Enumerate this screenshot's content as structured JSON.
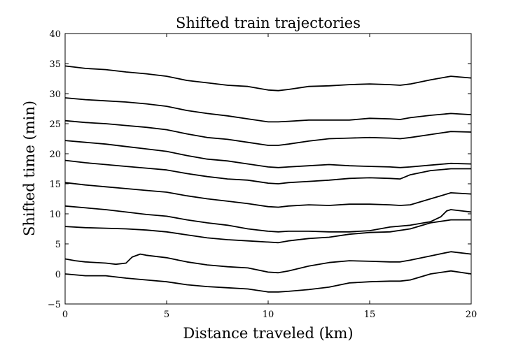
{
  "chart_data": {
    "type": "line",
    "title": "Shifted train trajectories",
    "xlabel": "Distance traveled (km)",
    "ylabel": "Shifted time (min)",
    "xlim": [
      0,
      20
    ],
    "ylim": [
      -5,
      40
    ],
    "xticks": [
      0,
      5,
      10,
      15,
      20
    ],
    "yticks": [
      -5,
      0,
      5,
      10,
      15,
      20,
      25,
      30,
      35,
      40
    ],
    "grid": false,
    "line_color": "#000000",
    "series": [
      {
        "x": [
          0,
          1,
          2,
          3,
          4,
          5,
          6,
          7,
          8,
          9,
          10,
          10.5,
          11,
          12,
          13,
          14,
          15,
          16,
          16.5,
          17,
          18,
          19,
          20
        ],
        "y": [
          0,
          -0.3,
          -0.3,
          -0.7,
          -1.0,
          -1.3,
          -1.8,
          -2.1,
          -2.3,
          -2.5,
          -3.0,
          -3.0,
          -2.9,
          -2.6,
          -2.2,
          -1.5,
          -1.3,
          -1.2,
          -1.2,
          -1.0,
          0.0,
          0.5,
          0.0
        ]
      },
      {
        "x": [
          0,
          0.5,
          1,
          2,
          2.5,
          3,
          3.3,
          3.7,
          4,
          5,
          6,
          7,
          8,
          9,
          10,
          10.5,
          11,
          12,
          13,
          14,
          15,
          16,
          16.5,
          17,
          18,
          19,
          20
        ],
        "y": [
          2.5,
          2.2,
          2.0,
          1.8,
          1.6,
          1.8,
          2.8,
          3.3,
          3.1,
          2.7,
          2.0,
          1.5,
          1.2,
          1.0,
          0.3,
          0.2,
          0.5,
          1.3,
          1.9,
          2.2,
          2.1,
          2.0,
          2.0,
          2.3,
          3.0,
          3.7,
          3.3
        ]
      },
      {
        "x": [
          0,
          1,
          2,
          3,
          4,
          5,
          6,
          7,
          8,
          9,
          10,
          10.5,
          11,
          12,
          13,
          14,
          15,
          16,
          17,
          18,
          19,
          20
        ],
        "y": [
          7.9,
          7.7,
          7.6,
          7.5,
          7.3,
          7.0,
          6.5,
          6.0,
          5.7,
          5.5,
          5.3,
          5.2,
          5.5,
          5.9,
          6.1,
          6.6,
          6.9,
          7.0,
          7.5,
          8.5,
          9.0,
          9.0
        ]
      },
      {
        "x": [
          0,
          1,
          2,
          3,
          4,
          5,
          6,
          7,
          8,
          9,
          10,
          10.5,
          11,
          12,
          13,
          14,
          15,
          16,
          17,
          18,
          18.5,
          18.8,
          19,
          20
        ],
        "y": [
          11.3,
          11.0,
          10.7,
          10.3,
          9.9,
          9.6,
          9.0,
          8.5,
          8.1,
          7.5,
          7.1,
          7.0,
          7.1,
          7.1,
          7.0,
          7.0,
          7.2,
          7.8,
          8.1,
          8.7,
          9.5,
          10.5,
          10.7,
          10.3
        ]
      },
      {
        "x": [
          0,
          1,
          2,
          3,
          4,
          5,
          6,
          7,
          8,
          9,
          10,
          10.5,
          11,
          12,
          13,
          14,
          15,
          16,
          16.5,
          17,
          18,
          19,
          20
        ],
        "y": [
          15.2,
          14.8,
          14.5,
          14.2,
          13.9,
          13.6,
          13.0,
          12.5,
          12.1,
          11.7,
          11.2,
          11.1,
          11.3,
          11.5,
          11.4,
          11.6,
          11.6,
          11.5,
          11.4,
          11.5,
          12.5,
          13.5,
          13.3
        ]
      },
      {
        "x": [
          0,
          1,
          2,
          3,
          4,
          5,
          6,
          7,
          8,
          9,
          10,
          10.5,
          11,
          12,
          13,
          14,
          15,
          16,
          16.5,
          17,
          18,
          19,
          20
        ],
        "y": [
          18.9,
          18.5,
          18.2,
          17.9,
          17.6,
          17.3,
          16.7,
          16.2,
          15.8,
          15.6,
          15.1,
          15.0,
          15.2,
          15.4,
          15.6,
          15.9,
          16.0,
          15.9,
          15.8,
          16.5,
          17.2,
          17.5,
          17.5
        ]
      },
      {
        "x": [
          0,
          1,
          2,
          3,
          4,
          5,
          6,
          7,
          8,
          9,
          10,
          10.5,
          11,
          12,
          13,
          14,
          15,
          16,
          16.5,
          17,
          18,
          19,
          20
        ],
        "y": [
          22.2,
          21.9,
          21.6,
          21.2,
          20.8,
          20.4,
          19.7,
          19.1,
          18.8,
          18.3,
          17.8,
          17.7,
          17.8,
          18.0,
          18.2,
          18.0,
          17.9,
          17.8,
          17.7,
          17.8,
          18.1,
          18.4,
          18.3
        ]
      },
      {
        "x": [
          0,
          1,
          2,
          3,
          4,
          5,
          6,
          7,
          8,
          9,
          10,
          10.5,
          11,
          12,
          13,
          14,
          15,
          16,
          16.5,
          17,
          18,
          19,
          20
        ],
        "y": [
          25.5,
          25.2,
          25.0,
          24.7,
          24.4,
          24.0,
          23.3,
          22.7,
          22.4,
          21.9,
          21.4,
          21.4,
          21.6,
          22.1,
          22.5,
          22.6,
          22.7,
          22.6,
          22.5,
          22.7,
          23.2,
          23.7,
          23.6
        ]
      },
      {
        "x": [
          0,
          1,
          2,
          3,
          4,
          5,
          6,
          7,
          8,
          9,
          10,
          10.5,
          11,
          12,
          13,
          14,
          15,
          16,
          16.5,
          17,
          18,
          19,
          20
        ],
        "y": [
          29.3,
          29.0,
          28.8,
          28.6,
          28.3,
          27.9,
          27.2,
          26.7,
          26.3,
          25.8,
          25.3,
          25.3,
          25.4,
          25.6,
          25.6,
          25.6,
          25.9,
          25.8,
          25.7,
          26.0,
          26.4,
          26.7,
          26.5
        ]
      },
      {
        "x": [
          0,
          1,
          2,
          3,
          4,
          5,
          6,
          7,
          8,
          9,
          10,
          10.5,
          11,
          12,
          13,
          14,
          15,
          16,
          16.5,
          17,
          18,
          19,
          20
        ],
        "y": [
          34.6,
          34.2,
          34.0,
          33.6,
          33.3,
          32.9,
          32.2,
          31.8,
          31.4,
          31.2,
          30.6,
          30.5,
          30.7,
          31.2,
          31.3,
          31.5,
          31.6,
          31.5,
          31.4,
          31.6,
          32.3,
          32.9,
          32.6
        ]
      }
    ]
  }
}
